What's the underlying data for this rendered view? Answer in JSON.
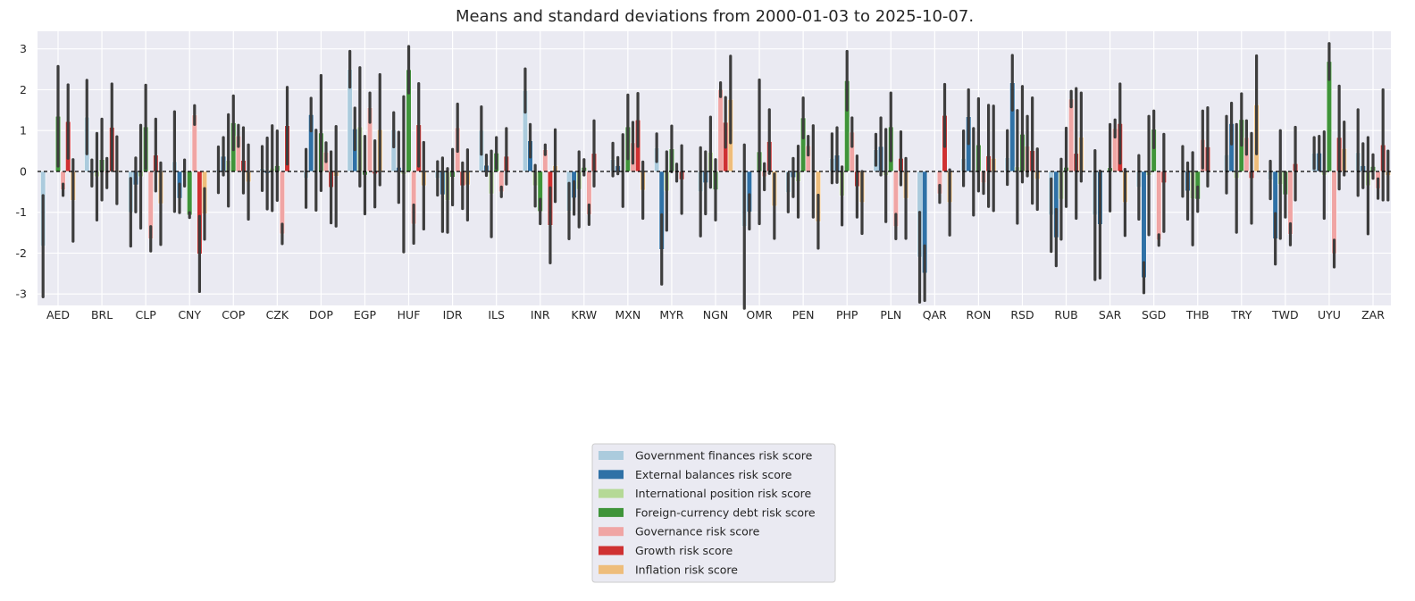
{
  "chart_data": {
    "type": "bar",
    "title": "Means and standard deviations from 2000-01-03 to 2025-10-07.",
    "xlabel": "",
    "ylabel": "",
    "ylim": [
      -3.28,
      3.43
    ],
    "yticks": [
      -3,
      -2,
      -1,
      0,
      1,
      2,
      3
    ],
    "grid": true,
    "legend_position": "bottom-center",
    "reference_line": 0,
    "error_bars": "standard deviation",
    "categories": [
      "AED",
      "BRL",
      "CLP",
      "CNY",
      "COP",
      "CZK",
      "DOP",
      "EGP",
      "HUF",
      "IDR",
      "ILS",
      "INR",
      "KRW",
      "MXN",
      "MYR",
      "NGN",
      "OMR",
      "PEN",
      "PHP",
      "PLN",
      "QAR",
      "RON",
      "RSD",
      "RUB",
      "SAR",
      "SGD",
      "THB",
      "TRY",
      "TWD",
      "UYU",
      "ZAR"
    ],
    "series": [
      {
        "name": "Government finances risk score",
        "color": "#abcbdd",
        "values": [
          -1.83,
          1.33,
          -1.0,
          0.24,
          0.04,
          0.07,
          -0.17,
          2.5,
          1.02,
          -0.17,
          1.0,
          1.98,
          -0.97,
          0.29,
          0.58,
          -0.5,
          -1.35,
          -0.52,
          0.32,
          0.53,
          -2.1,
          0.32,
          0.34,
          -1.07,
          -1.07,
          -0.39,
          0.0,
          0.41,
          -0.21,
          0.45,
          0.46
        ],
        "std": [
          1.24,
          0.9,
          0.83,
          1.22,
          0.56,
          0.54,
          0.71,
          0.44,
          0.42,
          0.41,
          0.58,
          0.53,
          0.68,
          0.4,
          0.34,
          1.08,
          2.0,
          0.47,
          0.6,
          0.38,
          1.1,
          0.67,
          0.66,
          0.89,
          1.58,
          0.78,
          0.61,
          0.94,
          0.46,
          0.38,
          1.05
        ]
      },
      {
        "name": "External balances risk score",
        "color": "#2f71a6",
        "values": [
          null,
          -0.04,
          -0.33,
          -0.66,
          0.37,
          -0.05,
          1.39,
          1.04,
          0.1,
          -0.57,
          0.15,
          0.75,
          -0.65,
          0.14,
          -1.91,
          -0.28,
          -0.99,
          -0.15,
          0.4,
          0.61,
          -2.49,
          1.34,
          2.17,
          -1.62,
          -1.3,
          -2.6,
          -0.48,
          1.17,
          -1.65,
          0.45,
          0.14
        ],
        "std": [
          null,
          0.32,
          0.66,
          0.35,
          0.46,
          0.87,
          0.4,
          0.51,
          0.86,
          0.9,
          0.25,
          0.4,
          0.4,
          0.2,
          0.85,
          0.76,
          0.42,
          0.47,
          0.67,
          0.7,
          0.67,
          0.66,
          0.67,
          0.69,
          1.31,
          0.37,
          0.69,
          0.5,
          0.62,
          0.41,
          0.54
        ]
      },
      {
        "name": "International position risk score",
        "color": "#b5d996",
        "values": [
          null,
          -0.13,
          -0.13,
          -0.04,
          0.27,
          0.08,
          0.03,
          1.09,
          -0.07,
          -0.71,
          -0.55,
          -0.35,
          -0.44,
          0.02,
          -0.48,
          0.47,
          null,
          -0.25,
          -0.6,
          -0.1,
          null,
          -0.01,
          0.11,
          -0.68,
          null,
          -0.1,
          -0.67,
          -0.17,
          -0.32,
          -0.09,
          -0.35
        ],
        "std": [
          null,
          1.06,
          1.26,
          0.32,
          1.12,
          1.04,
          0.98,
          1.45,
          1.9,
          0.78,
          1.05,
          0.5,
          0.92,
          0.88,
          0.96,
          0.86,
          null,
          0.87,
          0.71,
          1.13,
          null,
          1.06,
          1.38,
          0.98,
          null,
          1.45,
          1.13,
          1.32,
          1.32,
          1.06,
          1.18
        ]
      },
      {
        "name": "Foreign-currency debt risk score",
        "color": "#3f9439",
        "values": [
          1.35,
          0.29,
          1.09,
          -1.07,
          1.19,
          0.14,
          0.94,
          -0.09,
          2.49,
          -0.14,
          0.45,
          -0.98,
          0.1,
          1.09,
          0.55,
          -0.45,
          0.48,
          1.31,
          2.22,
          1.09,
          null,
          0.65,
          0.91,
          0.1,
          0.09,
          1.03,
          -0.68,
          1.27,
          -0.57,
          2.69,
          0.12
        ],
        "std": [
          1.22,
          0.99,
          1.02,
          0.06,
          0.66,
          0.85,
          1.41,
          0.95,
          0.57,
          0.68,
          0.38,
          0.3,
          0.19,
          0.78,
          0.56,
          0.74,
          1.76,
          0.49,
          0.72,
          0.83,
          null,
          1.13,
          1.17,
          0.96,
          1.06,
          0.45,
          0.3,
          0.63,
          0.55,
          0.44,
          0.29
        ]
      },
      {
        "name": "Governance risk score",
        "color": "#f0a5a4",
        "values": [
          -0.45,
          -0.04,
          -1.65,
          1.38,
          0.87,
          -1.53,
          0.47,
          1.56,
          -1.29,
          1.07,
          -0.5,
          0.53,
          -1.06,
          0.7,
          -0.03,
          2.0,
          -0.13,
          0.63,
          0.96,
          -1.35,
          -0.55,
          -0.28,
          0.62,
          1.77,
          1.05,
          -1.68,
          0.78,
          0.83,
          -1.54,
          -2.01,
          -0.42
        ],
        "std": [
          0.14,
          0.36,
          0.3,
          0.23,
          0.26,
          0.24,
          0.23,
          0.36,
          0.47,
          0.58,
          0.12,
          0.12,
          0.24,
          0.5,
          0.21,
          0.17,
          0.32,
          0.23,
          0.35,
          0.3,
          0.21,
          0.26,
          0.73,
          0.19,
          0.21,
          0.13,
          0.7,
          0.41,
          0.26,
          0.33,
          0.24
        ]
      },
      {
        "name": "Growth risk score",
        "color": "#cf3132",
        "values": [
          1.22,
          1.08,
          0.4,
          -2.02,
          0.27,
          1.12,
          -0.39,
          -0.06,
          1.14,
          -0.35,
          0.37,
          -1.32,
          0.44,
          1.26,
          -0.2,
          1.2,
          0.73,
          0.0,
          -0.37,
          0.32,
          1.37,
          0.38,
          0.51,
          0.44,
          1.17,
          -0.28,
          0.6,
          -0.17,
          0.19,
          0.83,
          0.65
        ],
        "std": [
          0.9,
          1.06,
          0.88,
          0.92,
          0.8,
          0.94,
          0.87,
          0.81,
          1.01,
          0.56,
          0.68,
          0.92,
          0.8,
          0.65,
          0.83,
          0.61,
          0.78,
          1.12,
          0.75,
          0.65,
          0.76,
          1.24,
          1.29,
          1.59,
          0.97,
          1.19,
          0.96,
          1.1,
          0.89,
          1.26,
          1.35
        ]
      },
      {
        "name": "Inflation risk score",
        "color": "#eebd7b",
        "values": [
          -0.71,
          0.03,
          -0.79,
          -1.04,
          -0.26,
          null,
          -0.12,
          1.02,
          -0.35,
          -0.33,
          null,
          0.14,
          null,
          -0.46,
          null,
          1.76,
          -0.85,
          -1.23,
          -0.76,
          -0.66,
          -0.76,
          0.32,
          -0.19,
          0.84,
          -0.76,
          null,
          null,
          1.63,
          null,
          0.56,
          -0.1
        ],
        "std": [
          1.0,
          0.82,
          1.0,
          0.62,
          0.91,
          null,
          1.22,
          1.35,
          1.06,
          0.86,
          null,
          0.88,
          null,
          0.69,
          null,
          1.06,
          0.79,
          0.65,
          0.76,
          0.98,
          0.8,
          1.28,
          0.74,
          1.08,
          0.81,
          null,
          null,
          1.2,
          null,
          0.65,
          0.6
        ]
      }
    ]
  }
}
